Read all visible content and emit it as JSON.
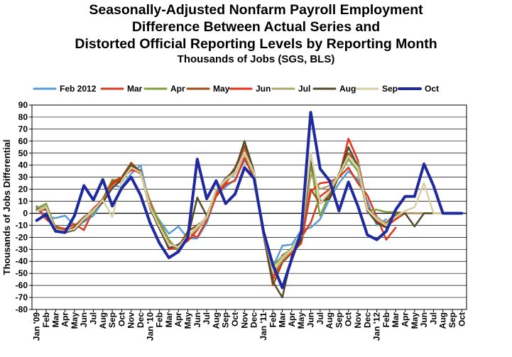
{
  "chart_data": {
    "type": "line",
    "title_lines": [
      "Seasonally-Adjusted Nonfarm Payroll Employment",
      "Difference Between Actual Series and",
      "Distorted Official Reporting Levels by Reporting Month"
    ],
    "subtitle": "Thousands of Jobs (SGS, BLS)",
    "ylabel": "Thousands of Jobs Differential",
    "xlabel": "",
    "ylim": [
      -80,
      90
    ],
    "yticks": [
      90,
      80,
      70,
      60,
      50,
      40,
      30,
      20,
      10,
      0,
      -10,
      -20,
      -30,
      -40,
      -50,
      -60,
      -70,
      -80
    ],
    "grid": true,
    "legend_position": "top",
    "categories": [
      "Jan '09",
      "Feb",
      "Mar",
      "Apr",
      "May",
      "Jun",
      "Jul",
      "Aug",
      "Sep",
      "Oct",
      "Nov",
      "Dec",
      "Jan '10",
      "Feb",
      "Mar",
      "Apr",
      "May",
      "Jun",
      "Jul",
      "Aug",
      "Sep",
      "Oct",
      "Nov",
      "Dec",
      "Jan '11",
      "Feb",
      "Mar",
      "Apr",
      "May",
      "Jun",
      "Jul",
      "Aug",
      "Sep",
      "Oct",
      "Nov",
      "Dec",
      "Jan '12",
      "Feb",
      "Mar",
      "Apr",
      "May",
      "Jun",
      "Jul",
      "Aug",
      "Sep",
      "Oct"
    ],
    "series": [
      {
        "name": "Feb 2012",
        "color": "#5b9bd5",
        "width": 2.5,
        "values": [
          6,
          -3,
          -4,
          -2,
          -10,
          -7,
          -2,
          10,
          23,
          22,
          33,
          40,
          5,
          -6,
          -17,
          -11,
          -21,
          -21,
          -8,
          15,
          22,
          28,
          44,
          33,
          -17,
          -45,
          -27,
          -26,
          -14,
          -12,
          -5,
          12,
          25,
          35,
          28,
          10,
          -10,
          -5,
          null,
          null,
          null,
          null,
          null,
          null,
          null,
          null
        ]
      },
      {
        "name": "Mar",
        "color": "#d83a1f",
        "width": 2.5,
        "values": [
          5,
          -5,
          -11,
          -13,
          -9,
          -14,
          3,
          12,
          26,
          28,
          38,
          33,
          10,
          -8,
          -23,
          -30,
          -16,
          -20,
          -6,
          14,
          24,
          27,
          46,
          29,
          -15,
          -51,
          -35,
          -30,
          -20,
          -8,
          14,
          20,
          30,
          38,
          25,
          15,
          -3,
          -22,
          -12,
          null,
          null,
          null,
          null,
          null,
          null,
          null
        ]
      },
      {
        "name": "Apr",
        "color": "#7da23c",
        "width": 2.5,
        "values": [
          4,
          8,
          -12,
          -15,
          -12,
          -4,
          0,
          12,
          28,
          26,
          38,
          35,
          8,
          -7,
          -22,
          -32,
          -18,
          -14,
          -3,
          18,
          28,
          33,
          50,
          31,
          -16,
          -44,
          -36,
          -29,
          -18,
          40,
          -2,
          16,
          31,
          45,
          35,
          2,
          3,
          1,
          1,
          0,
          null,
          null,
          null,
          null,
          null,
          null
        ]
      },
      {
        "name": "May",
        "color": "#9c4d16",
        "width": 2.5,
        "values": [
          2,
          5,
          -12,
          -16,
          -11,
          -3,
          2,
          10,
          26,
          30,
          42,
          34,
          4,
          -10,
          -26,
          -28,
          -15,
          -10,
          -4,
          20,
          27,
          38,
          56,
          30,
          -18,
          -60,
          -41,
          -33,
          -20,
          20,
          8,
          15,
          33,
          50,
          40,
          5,
          -5,
          -8,
          0,
          0,
          0,
          null,
          null,
          null,
          null,
          null
        ]
      },
      {
        "name": "Jun",
        "color": "#e53118",
        "width": 2.5,
        "values": [
          3,
          3,
          -14,
          -14,
          -14,
          -5,
          4,
          11,
          24,
          29,
          36,
          34,
          6,
          -12,
          -30,
          -28,
          -23,
          -14,
          -2,
          16,
          25,
          36,
          52,
          31,
          -17,
          -55,
          -38,
          -33,
          -25,
          18,
          25,
          26,
          30,
          62,
          44,
          5,
          -7,
          -11,
          -5,
          0,
          0,
          0,
          null,
          null,
          null,
          null
        ]
      },
      {
        "name": "Jul",
        "color": "#b0a46e",
        "width": 2.5,
        "values": [
          3,
          6,
          -13,
          -15,
          -13,
          -4,
          3,
          10,
          22,
          27,
          38,
          36,
          5,
          -11,
          -25,
          -29,
          -19,
          -13,
          -4,
          18,
          27,
          33,
          50,
          32,
          -17,
          -50,
          -39,
          -31,
          -20,
          32,
          20,
          23,
          32,
          47,
          42,
          3,
          -3,
          -9,
          -3,
          0,
          0,
          0,
          0,
          null,
          null,
          null
        ]
      },
      {
        "name": "Aug",
        "color": "#544a2c",
        "width": 2.5,
        "values": [
          3,
          4,
          -14,
          -16,
          -14,
          -6,
          2,
          9,
          21,
          28,
          40,
          35,
          4,
          -13,
          -29,
          -26,
          -20,
          13,
          -2,
          19,
          29,
          36,
          60,
          35,
          -18,
          -57,
          -70,
          -35,
          -22,
          45,
          10,
          12,
          32,
          55,
          39,
          2,
          -8,
          -12,
          -2,
          0,
          -11,
          0,
          0,
          0,
          null,
          null
        ]
      },
      {
        "name": "Sep",
        "color": "#d6d0a3",
        "width": 2.5,
        "values": [
          2,
          5,
          -14,
          -15,
          -13,
          -5,
          2,
          11,
          -3,
          27,
          38,
          34,
          5,
          -11,
          -26,
          -28,
          -19,
          -11,
          -3,
          20,
          28,
          34,
          51,
          34,
          -17,
          -48,
          -37,
          -30,
          -19,
          50,
          8,
          18,
          32,
          48,
          38,
          3,
          -5,
          -10,
          -3,
          2,
          5,
          25,
          0,
          0,
          0,
          null
        ]
      },
      {
        "name": "Oct",
        "color": "#1f2a9e",
        "width": 4,
        "values": [
          -6,
          -1,
          -15,
          -16,
          -2,
          23,
          11,
          28,
          6,
          21,
          30,
          15,
          -8,
          -25,
          -37,
          -32,
          -20,
          45,
          12,
          27,
          8,
          16,
          38,
          29,
          -15,
          -43,
          -62,
          -38,
          -16,
          84,
          37,
          27,
          2,
          26,
          6,
          -18,
          -22,
          -15,
          3,
          14,
          14,
          41,
          23,
          0,
          0,
          0
        ]
      }
    ]
  }
}
